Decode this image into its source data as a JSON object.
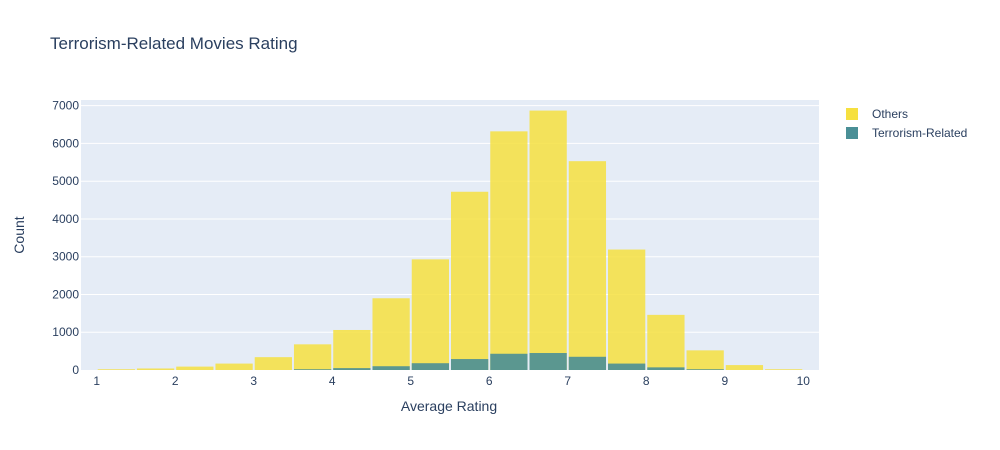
{
  "chart_data": {
    "type": "histogram",
    "title": "Terrorism-Related Movies Rating",
    "xlabel": "Average Rating",
    "ylabel": "Count",
    "xlim": [
      0.8,
      10.2
    ],
    "ylim": [
      0,
      7150
    ],
    "bin_width": 0.5,
    "xticks": [
      1,
      2,
      3,
      4,
      5,
      6,
      7,
      8,
      9,
      10
    ],
    "yticks": [
      0,
      1000,
      2000,
      3000,
      4000,
      5000,
      6000,
      7000
    ],
    "ytick_labels": [
      "0",
      "1000",
      "2000",
      "3000",
      "4000",
      "5000",
      "6000",
      "7000"
    ],
    "grid": true,
    "legend_position": "top-right",
    "series": [
      {
        "name": "Others",
        "color": "#f6e03f",
        "bins": [
          {
            "x0": 1.0,
            "x1": 1.5,
            "value": 20
          },
          {
            "x0": 1.5,
            "x1": 2.0,
            "value": 40
          },
          {
            "x0": 2.0,
            "x1": 2.5,
            "value": 90
          },
          {
            "x0": 2.5,
            "x1": 3.0,
            "value": 170
          },
          {
            "x0": 3.0,
            "x1": 3.5,
            "value": 340
          },
          {
            "x0": 3.5,
            "x1": 4.0,
            "value": 680
          },
          {
            "x0": 4.0,
            "x1": 4.5,
            "value": 1060
          },
          {
            "x0": 4.5,
            "x1": 5.0,
            "value": 1900
          },
          {
            "x0": 5.0,
            "x1": 5.5,
            "value": 2930
          },
          {
            "x0": 5.5,
            "x1": 6.0,
            "value": 4720
          },
          {
            "x0": 6.0,
            "x1": 6.5,
            "value": 6320
          },
          {
            "x0": 6.5,
            "x1": 7.0,
            "value": 6870
          },
          {
            "x0": 7.0,
            "x1": 7.5,
            "value": 5530
          },
          {
            "x0": 7.5,
            "x1": 8.0,
            "value": 3190
          },
          {
            "x0": 8.0,
            "x1": 8.5,
            "value": 1460
          },
          {
            "x0": 8.5,
            "x1": 9.0,
            "value": 520
          },
          {
            "x0": 9.0,
            "x1": 9.5,
            "value": 130
          },
          {
            "x0": 9.5,
            "x1": 10.0,
            "value": 20
          }
        ]
      },
      {
        "name": "Terrorism-Related",
        "color": "#4a8f96",
        "bins": [
          {
            "x0": 3.5,
            "x1": 4.0,
            "value": 20
          },
          {
            "x0": 4.0,
            "x1": 4.5,
            "value": 50
          },
          {
            "x0": 4.5,
            "x1": 5.0,
            "value": 100
          },
          {
            "x0": 5.0,
            "x1": 5.5,
            "value": 180
          },
          {
            "x0": 5.5,
            "x1": 6.0,
            "value": 290
          },
          {
            "x0": 6.0,
            "x1": 6.5,
            "value": 430
          },
          {
            "x0": 6.5,
            "x1": 7.0,
            "value": 450
          },
          {
            "x0": 7.0,
            "x1": 7.5,
            "value": 350
          },
          {
            "x0": 7.5,
            "x1": 8.0,
            "value": 170
          },
          {
            "x0": 8.0,
            "x1": 8.5,
            "value": 70
          },
          {
            "x0": 8.5,
            "x1": 9.0,
            "value": 20
          }
        ]
      }
    ]
  }
}
